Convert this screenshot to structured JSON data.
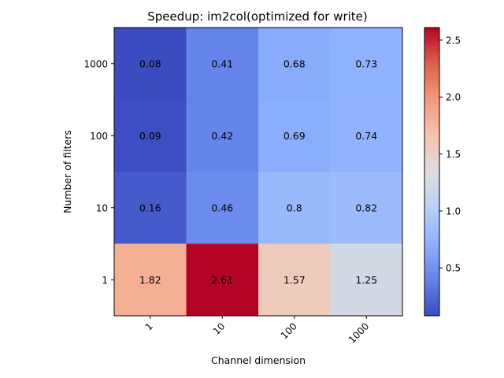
{
  "chart_data": {
    "type": "heatmap",
    "title": "Speedup: im2col(optimized for write)",
    "xlabel": "Channel dimension",
    "ylabel": "Number of filters",
    "x_categories": [
      "1",
      "10",
      "100",
      "1000"
    ],
    "y_categories": [
      "1000",
      "100",
      "10",
      "1"
    ],
    "values": [
      [
        0.08,
        0.41,
        0.68,
        0.73
      ],
      [
        0.09,
        0.42,
        0.69,
        0.74
      ],
      [
        0.16,
        0.46,
        0.8,
        0.82
      ],
      [
        1.82,
        2.61,
        1.57,
        1.25
      ]
    ],
    "cell_labels": [
      [
        "0.08",
        "0.41",
        "0.68",
        "0.73"
      ],
      [
        "0.09",
        "0.42",
        "0.69",
        "0.74"
      ],
      [
        "0.16",
        "0.46",
        "0.8",
        "0.82"
      ],
      [
        "1.82",
        "2.61",
        "1.57",
        "1.25"
      ]
    ],
    "colormap": "coolwarm",
    "vmin": 0.08,
    "vmax": 2.61,
    "colorbar_ticks": [
      0.5,
      1.0,
      1.5,
      2.0,
      2.5
    ],
    "colorbar_tick_labels": [
      "0.5",
      "1.0",
      "1.5",
      "2.0",
      "2.5"
    ],
    "x_tick_rotation_deg": 45
  }
}
